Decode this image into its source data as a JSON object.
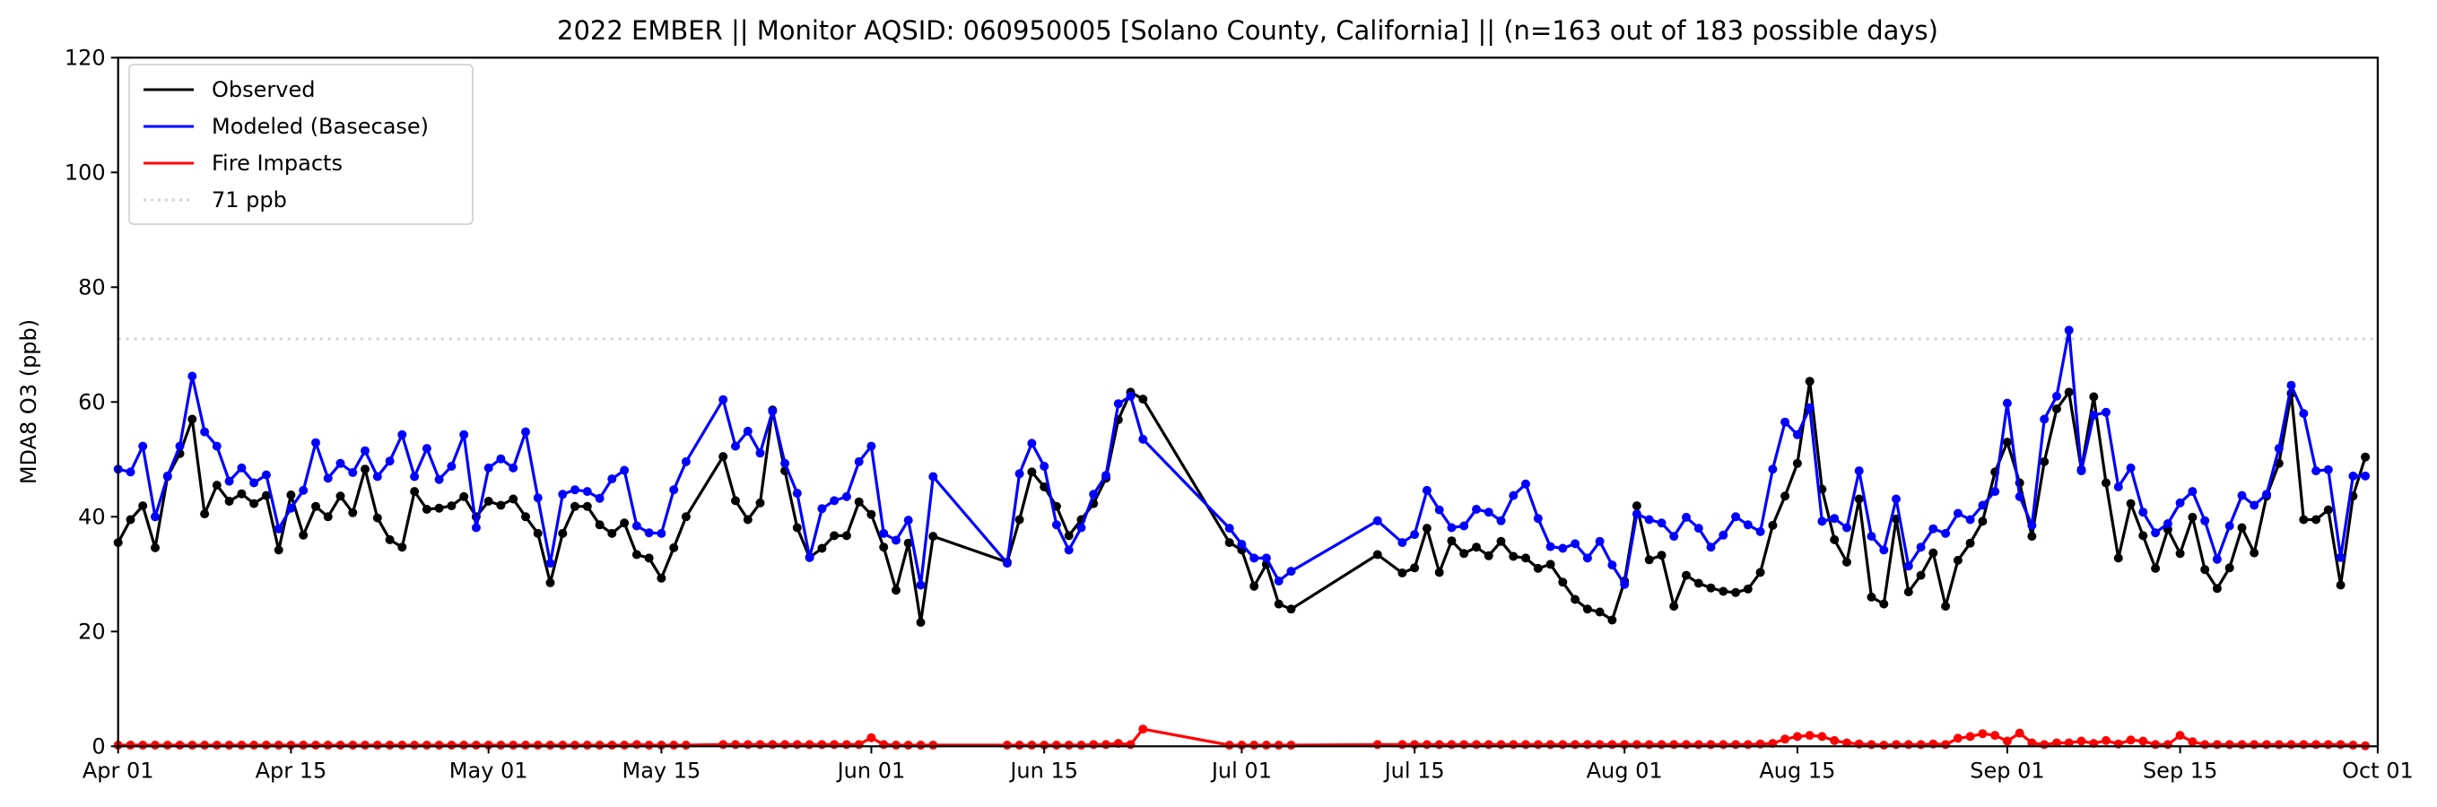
{
  "chart_data": {
    "type": "line",
    "title": "2022 EMBER || Monitor AQSID: 060950005 [Solano County, California] || (n=163 out of 183 possible days)",
    "xlabel": "",
    "ylabel": "MDA8 O3 (ppb)",
    "x_unit": "days since Apr 01",
    "xlim": [
      0,
      183
    ],
    "ylim": [
      0,
      120
    ],
    "yticks": [
      0,
      20,
      40,
      60,
      80,
      100,
      120
    ],
    "xticks": [
      {
        "value": 0,
        "label": "Apr 01"
      },
      {
        "value": 14,
        "label": "Apr 15"
      },
      {
        "value": 30,
        "label": "May 01"
      },
      {
        "value": 44,
        "label": "May 15"
      },
      {
        "value": 61,
        "label": "Jun 01"
      },
      {
        "value": 75,
        "label": "Jun 15"
      },
      {
        "value": 91,
        "label": "Jul 01"
      },
      {
        "value": 105,
        "label": "Jul 15"
      },
      {
        "value": 122,
        "label": "Aug 01"
      },
      {
        "value": 136,
        "label": "Aug 15"
      },
      {
        "value": 153,
        "label": "Sep 01"
      },
      {
        "value": 167,
        "label": "Sep 15"
      },
      {
        "value": 183,
        "label": "Oct 01"
      }
    ],
    "grid": false,
    "legend_position": "top-left",
    "reference_line": {
      "value": 71,
      "label": "71 ppb",
      "color": "#d3d3d3"
    },
    "series": [
      {
        "name": "Observed",
        "color": "#000000",
        "values": [
          35.5,
          39.5,
          41.9,
          34.6,
          47,
          51,
          57,
          40.5,
          45.5,
          42.7,
          44,
          42.3,
          43.7,
          34.2,
          43.8,
          36.8,
          41.8,
          40,
          43.6,
          40.7,
          48.3,
          39.8,
          36,
          34.7,
          44.4,
          41.3,
          41.5,
          41.9,
          43.5,
          40,
          42.7,
          42,
          43.1,
          40,
          37.1,
          28.5,
          37.1,
          41.8,
          41.8,
          38.6,
          37.1,
          38.9,
          33.4,
          32.8,
          29.3,
          34.6,
          40,
          null,
          null,
          50.5,
          42.8,
          39.5,
          42.4,
          58.6,
          48,
          38.1,
          32.9,
          34.5,
          36.7,
          36.7,
          42.6,
          40.4,
          34.7,
          27.2,
          35.4,
          21.6,
          36.6,
          null,
          null,
          null,
          null,
          null,
          32.1,
          39.5,
          47.8,
          45.2,
          41.8,
          36.7,
          39.5,
          42.3,
          46.7,
          56.9,
          61.7,
          60.5,
          null,
          null,
          null,
          null,
          null,
          null,
          35.5,
          34.2,
          27.9,
          31.7,
          24.8,
          23.9,
          null,
          null,
          null,
          null,
          null,
          null,
          33.4,
          null,
          30.2,
          31.1,
          38,
          30.3,
          35.8,
          33.6,
          34.7,
          33.2,
          35.7,
          33.1,
          32.8,
          31,
          31.7,
          28.6,
          25.6,
          23.9,
          23.4,
          22,
          28.8,
          41.9,
          32.5,
          33.3,
          24.4,
          29.8,
          28.4,
          27.6,
          27,
          26.8,
          27.4,
          30.3,
          38.5,
          43.6,
          49.3,
          63.6,
          44.8,
          36,
          32.1,
          43.1,
          26,
          24.8,
          39.6,
          26.9,
          29.8,
          33.7,
          24.4,
          32.4,
          35.4,
          39.2,
          47.8,
          53,
          45.9,
          36.6,
          49.6,
          58.8,
          61.7,
          48.2,
          60.9,
          45.9,
          32.8,
          42.3,
          36.7,
          31,
          37.8,
          33.6,
          39.9,
          30.8,
          27.5,
          31.1,
          38.1,
          33.7,
          43.6,
          49.3,
          61.5,
          39.5,
          39.5,
          41.2,
          28.1,
          43.6,
          50.4
        ]
      },
      {
        "name": "Modeled (Basecase)",
        "color": "#0000ff",
        "values": [
          48.3,
          47.8,
          52.3,
          40,
          47.1,
          52.3,
          64.5,
          54.8,
          52.3,
          46.2,
          48.5,
          45.9,
          47.3,
          37.9,
          41.5,
          44.6,
          52.9,
          46.7,
          49.3,
          47.7,
          51.5,
          47,
          49.7,
          54.3,
          47,
          51.9,
          46.5,
          48.8,
          54.3,
          38.1,
          48.5,
          50.1,
          48.5,
          54.8,
          43.3,
          31.9,
          43.9,
          44.7,
          44.4,
          43.2,
          46.6,
          48.1,
          38.4,
          37.2,
          37.1,
          44.7,
          49.6,
          null,
          null,
          60.4,
          52.3,
          54.9,
          51.1,
          58.4,
          49.3,
          44.1,
          32.9,
          41.4,
          42.8,
          43.5,
          49.6,
          52.3,
          37.1,
          35.9,
          39.4,
          28.1,
          47,
          null,
          null,
          null,
          null,
          null,
          31.9,
          47.5,
          52.8,
          48.8,
          38.6,
          34.2,
          38.1,
          43.9,
          47.2,
          59.7,
          61,
          53.5,
          null,
          null,
          null,
          null,
          null,
          null,
          38,
          35.2,
          32.8,
          32.8,
          28.8,
          30.5,
          null,
          null,
          null,
          null,
          null,
          null,
          39.3,
          null,
          35.5,
          36.9,
          44.6,
          41.2,
          38.1,
          38.4,
          41.3,
          40.8,
          39.3,
          43.7,
          45.7,
          39.7,
          34.8,
          34.5,
          35.3,
          32.8,
          35.7,
          31.6,
          28.2,
          40.5,
          39.5,
          38.9,
          36.6,
          39.9,
          38,
          34.7,
          36.8,
          40,
          38.6,
          37.4,
          48.3,
          56.5,
          54.3,
          59,
          39.2,
          39.7,
          38.1,
          48,
          36.6,
          34.2,
          43.1,
          31.4,
          34.7,
          37.9,
          37.1,
          40.6,
          39.5,
          42,
          44.4,
          59.8,
          43.5,
          38.5,
          57,
          61,
          72.5,
          48,
          57.7,
          58.2,
          45.2,
          48.5,
          40.8,
          37.2,
          38.8,
          42.4,
          44.4,
          39.3,
          32.6,
          38.4,
          43.7,
          42,
          43.9,
          51.9,
          62.9,
          58,
          48,
          48.2,
          32.9,
          47.1,
          47.1
        ]
      },
      {
        "name": "Fire Impacts",
        "color": "#ff0000",
        "values": [
          0.2,
          0.2,
          0.2,
          0.2,
          0.2,
          0.2,
          0.2,
          0.2,
          0.2,
          0.2,
          0.2,
          0.2,
          0.2,
          0.2,
          0.2,
          0.2,
          0.2,
          0.2,
          0.2,
          0.2,
          0.2,
          0.2,
          0.2,
          0.2,
          0.2,
          0.2,
          0.2,
          0.2,
          0.2,
          0.2,
          0.2,
          0.2,
          0.2,
          0.2,
          0.2,
          0.2,
          0.2,
          0.2,
          0.2,
          0.2,
          0.2,
          0.2,
          0.3,
          0.2,
          0.2,
          0.2,
          0.2,
          null,
          null,
          0.3,
          0.3,
          0.3,
          0.3,
          0.3,
          0.3,
          0.3,
          0.3,
          0.3,
          0.3,
          0.3,
          0.3,
          1.5,
          0.3,
          0.2,
          0.2,
          0.2,
          0.2,
          null,
          null,
          null,
          null,
          null,
          0.2,
          0.2,
          0.2,
          0.2,
          0.2,
          0.2,
          0.2,
          0.3,
          0.3,
          0.5,
          0.3,
          3.0,
          null,
          null,
          null,
          null,
          null,
          null,
          0.2,
          0.2,
          0.2,
          0.2,
          0.2,
          0.2,
          null,
          null,
          null,
          null,
          null,
          null,
          0.3,
          null,
          0.3,
          0.3,
          0.3,
          0.3,
          0.3,
          0.3,
          0.3,
          0.3,
          0.3,
          0.3,
          0.3,
          0.3,
          0.3,
          0.3,
          0.3,
          0.3,
          0.3,
          0.3,
          0.3,
          0.3,
          0.3,
          0.3,
          0.3,
          0.3,
          0.3,
          0.3,
          0.3,
          0.3,
          0.3,
          0.4,
          0.5,
          1.25,
          1.7,
          1.9,
          1.7,
          1.0,
          0.6,
          0.4,
          0.3,
          0.2,
          0.3,
          0.3,
          0.3,
          0.4,
          0.3,
          1.4,
          1.7,
          2.2,
          1.9,
          0.9,
          2.3,
          0.6,
          0.3,
          0.6,
          0.6,
          0.9,
          0.5,
          1.0,
          0.4,
          1.1,
          0.9,
          0.3,
          0.3,
          1.9,
          0.8,
          0.3,
          0.3,
          0.3,
          0.3,
          0.3,
          0.3,
          0.3,
          0.3,
          0.3,
          0.3,
          0.3,
          0.3,
          0.2,
          0.1
        ]
      }
    ]
  }
}
